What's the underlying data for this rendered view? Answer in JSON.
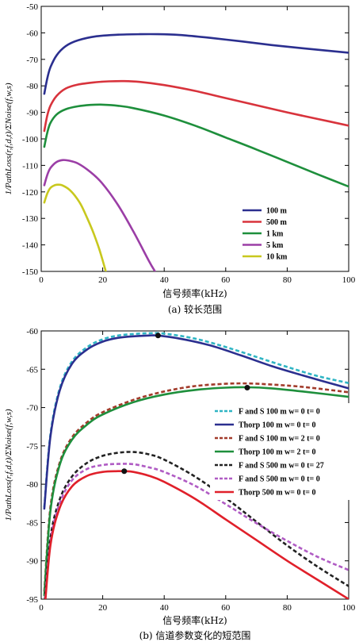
{
  "chart_data": [
    {
      "type": "line",
      "id": "a",
      "caption": "(a) 较长范围",
      "xlabel": "信号频率(kHz)",
      "ylabel": "1/PathLoss(r,f,d,t)/ΣNoise(f,w,s)",
      "xlim": [
        0,
        100
      ],
      "ylim": [
        -150,
        -50
      ],
      "xticks": [
        0,
        20,
        40,
        60,
        80,
        100
      ],
      "yticks": [
        -50,
        -60,
        -70,
        -80,
        -90,
        -100,
        -110,
        -120,
        -130,
        -140,
        -150
      ],
      "legend_position": "lower-right",
      "series": [
        {
          "name": "100 m",
          "color": "#2b2f8f",
          "dash": "solid",
          "x": [
            1,
            2,
            3,
            5,
            8,
            12,
            18,
            25,
            32,
            38,
            45,
            55,
            65,
            75,
            85,
            100
          ],
          "y": [
            -83,
            -77,
            -73,
            -68.5,
            -65,
            -62.8,
            -61.3,
            -60.7,
            -60.5,
            -60.5,
            -60.8,
            -61.9,
            -63.2,
            -64.6,
            -65.8,
            -67.5
          ]
        },
        {
          "name": "500 m",
          "color": "#d8333c",
          "dash": "solid",
          "x": [
            1,
            2,
            3,
            5,
            8,
            12,
            18,
            22,
            27,
            32,
            40,
            50,
            60,
            70,
            80,
            90,
            100
          ],
          "y": [
            -97,
            -91,
            -87.5,
            -83.8,
            -81,
            -79.5,
            -78.6,
            -78.3,
            -78.2,
            -78.5,
            -79.7,
            -81.9,
            -84.6,
            -87.3,
            -90,
            -92.5,
            -95
          ]
        },
        {
          "name": "1 km",
          "color": "#1e8f3c",
          "dash": "solid",
          "x": [
            1,
            2,
            3,
            5,
            8,
            12,
            16,
            20,
            25,
            30,
            40,
            50,
            60,
            70,
            80,
            90,
            100
          ],
          "y": [
            -103,
            -97.5,
            -94,
            -90.8,
            -88.8,
            -87.7,
            -87.2,
            -87.1,
            -87.5,
            -88.4,
            -91.2,
            -95,
            -99.5,
            -104,
            -108.7,
            -113.4,
            -118
          ]
        },
        {
          "name": "5 km",
          "color": "#9b3ea6",
          "dash": "solid",
          "x": [
            1,
            2,
            3,
            5,
            7,
            9,
            12,
            16,
            20,
            25,
            30,
            35,
            37
          ],
          "y": [
            -117.5,
            -113.5,
            -111,
            -108.7,
            -108,
            -108.2,
            -109.3,
            -112.5,
            -117,
            -125,
            -135,
            -146,
            -150
          ]
        },
        {
          "name": "10 km",
          "color": "#c8c81e",
          "dash": "solid",
          "x": [
            1,
            2,
            3,
            4,
            5,
            6,
            7,
            9,
            11,
            13,
            15,
            17,
            19,
            21
          ],
          "y": [
            -124,
            -120.5,
            -118.5,
            -117.7,
            -117.3,
            -117.3,
            -117.6,
            -119,
            -121.5,
            -125,
            -130,
            -135.5,
            -142,
            -150
          ]
        }
      ]
    },
    {
      "type": "line",
      "id": "b",
      "caption": "(b) 信道参数变化的短范围",
      "xlabel": "信号频率(kHz)",
      "ylabel": "1/PathLoss(r,f,d,t)/ΣNoise(f,w,s)",
      "xlim": [
        0,
        100
      ],
      "ylim": [
        -95,
        -60
      ],
      "xticks": [
        0,
        20,
        40,
        60,
        80,
        100
      ],
      "yticks": [
        -60,
        -65,
        -70,
        -75,
        -80,
        -85,
        -90,
        -95
      ],
      "legend_position": "right",
      "series": [
        {
          "name": "F and S 100 m w= 0 t= 0",
          "color": "#2fb5c4",
          "dash": "dashed",
          "x": [
            1,
            3,
            6,
            10,
            15,
            20,
            25,
            30,
            35,
            40,
            50,
            60,
            70,
            80,
            90,
            100
          ],
          "y": [
            -83,
            -73.5,
            -67.5,
            -64,
            -62.1,
            -61.1,
            -60.6,
            -60.4,
            -60.3,
            -60.35,
            -61,
            -62.1,
            -63.4,
            -64.7,
            -65.9,
            -66.8
          ]
        },
        {
          "name": "Thorp 100 m w= 0 t= 0",
          "color": "#2b2f8f",
          "dash": "solid",
          "x": [
            1,
            3,
            6,
            10,
            15,
            20,
            25,
            30,
            35,
            38,
            45,
            55,
            65,
            75,
            85,
            100
          ],
          "y": [
            -83.2,
            -73.8,
            -67.8,
            -64.3,
            -62.4,
            -61.4,
            -60.9,
            -60.7,
            -60.6,
            -60.6,
            -61,
            -61.9,
            -63.2,
            -64.6,
            -65.8,
            -67.5
          ]
        },
        {
          "name": "F and S 100 m w= 2 t= 0",
          "color": "#a23b2b",
          "dash": "dashed",
          "x": [
            1,
            3,
            6,
            10,
            15,
            20,
            30,
            40,
            50,
            60,
            67,
            75,
            85,
            100
          ],
          "y": [
            -94,
            -83,
            -77.2,
            -73.9,
            -71.9,
            -70.6,
            -69,
            -67.9,
            -67.2,
            -66.9,
            -66.85,
            -67,
            -67.3,
            -68
          ]
        },
        {
          "name": "Thorp 100 m w= 2 t= 0",
          "color": "#1e8f3c",
          "dash": "solid",
          "x": [
            1,
            3,
            6,
            10,
            15,
            20,
            30,
            40,
            50,
            60,
            67,
            75,
            85,
            100
          ],
          "y": [
            -94.5,
            -83.5,
            -77.5,
            -74.2,
            -72.2,
            -70.9,
            -69.3,
            -68.3,
            -67.7,
            -67.4,
            -67.35,
            -67.5,
            -67.9,
            -68.6
          ]
        },
        {
          "name": "F and S 500 m w= 0 t= 27",
          "color": "#222222",
          "dash": "dashed",
          "x": [
            1,
            3,
            6,
            10,
            15,
            20,
            25,
            30,
            35,
            40,
            50,
            60,
            70,
            80,
            90,
            100
          ],
          "y": [
            -96,
            -87,
            -82,
            -79,
            -77.2,
            -76.3,
            -75.9,
            -75.8,
            -76.1,
            -76.8,
            -79,
            -81.8,
            -84.9,
            -88,
            -90.8,
            -93.3
          ]
        },
        {
          "name": "F and S 500 m w= 0 t= 0",
          "color": "#b05cc4",
          "dash": "dashed",
          "x": [
            1,
            3,
            6,
            10,
            15,
            20,
            25,
            30,
            35,
            40,
            50,
            60,
            70,
            80,
            90,
            100
          ],
          "y": [
            -96.5,
            -87.5,
            -82.5,
            -79.5,
            -78,
            -77.5,
            -77.35,
            -77.4,
            -77.8,
            -78.4,
            -80.2,
            -82.6,
            -85.1,
            -87.4,
            -89.5,
            -91.2
          ]
        },
        {
          "name": "Thorp 500 m w= 0 t= 0",
          "color": "#e0202a",
          "dash": "solid",
          "x": [
            1,
            3,
            6,
            10,
            15,
            20,
            25,
            27,
            30,
            35,
            40,
            50,
            60,
            70,
            80,
            90,
            100
          ],
          "y": [
            -97,
            -88,
            -83.1,
            -80.3,
            -78.9,
            -78.4,
            -78.3,
            -78.3,
            -78.4,
            -78.9,
            -79.7,
            -81.9,
            -84.6,
            -87.3,
            -90,
            -92.5,
            -95
          ]
        }
      ],
      "markers": [
        {
          "x": 38,
          "y": -60.6
        },
        {
          "x": 67,
          "y": -67.4
        },
        {
          "x": 27,
          "y": -78.3
        }
      ]
    }
  ]
}
